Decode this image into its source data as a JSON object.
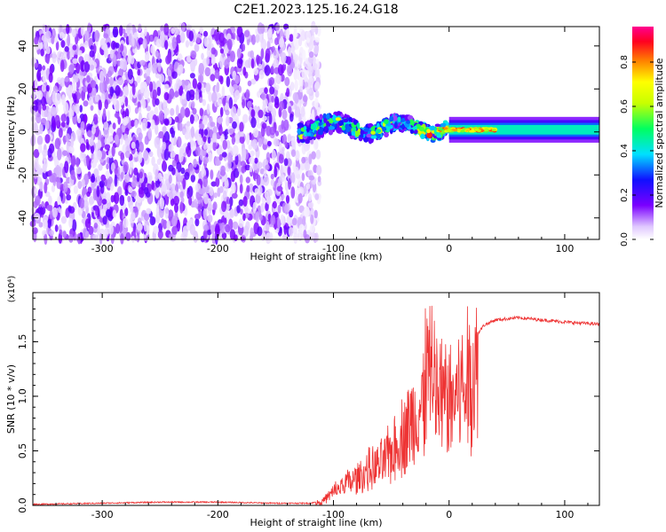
{
  "title": "C2E1.2023.125.16.24.G18",
  "colors": {
    "spectrogram_noise": "#6a00ff",
    "snr_line": "#ee3333"
  },
  "chart_data": [
    {
      "type": "heatmap",
      "xlabel": "Height of straight line (km)",
      "ylabel": "Frequency (Hz)",
      "xlim": [
        -360,
        130
      ],
      "ylim": [
        -50,
        49
      ],
      "xticks": [
        -300,
        -200,
        -100,
        0,
        100
      ],
      "yticks": [
        -40,
        -20,
        0,
        20,
        40
      ],
      "colorbar": {
        "label": "Normalized spectral amplitude",
        "range": [
          0,
          0.96
        ],
        "ticks": [
          "0.0",
          "0.2",
          "0.4",
          "0.6",
          "0.8"
        ],
        "colormap": "rainbow (white-violet-blue-cyan-green-yellow-red-magenta)"
      },
      "regions": [
        {
          "desc": "broadband noise",
          "x": [
            -360,
            -120
          ],
          "y": [
            -50,
            49
          ],
          "amplitude": 0.15
        },
        {
          "desc": "turbulent signal band",
          "x": [
            -130,
            0
          ],
          "y": [
            -8,
            10
          ],
          "amplitude": 0.4
        },
        {
          "desc": "stable carrier line",
          "x": [
            0,
            130
          ],
          "y_center": [
            0,
            2
          ],
          "amplitude": 0.45
        }
      ]
    },
    {
      "type": "line",
      "xlabel": "Height of straight line (km)",
      "ylabel": "SNR (10 * v/v)",
      "y_scale_label": "(x10⁴)",
      "xlim": [
        -360,
        130
      ],
      "ylim": [
        0,
        1.95
      ],
      "xticks": [
        -300,
        -200,
        -100,
        0,
        100
      ],
      "yticks": [
        "0.0",
        "0.5",
        "1.0",
        "1.5"
      ],
      "series": [
        {
          "x": [
            -360,
            -300,
            -250,
            -200,
            -150,
            -120,
            -110,
            -100,
            -90,
            -80,
            -70,
            -60,
            -50,
            -40,
            -30,
            -20,
            -15,
            -10,
            0,
            10,
            20,
            30,
            40,
            60,
            80,
            100,
            130
          ],
          "y": [
            0.01,
            0.02,
            0.03,
            0.03,
            0.02,
            0.02,
            0.04,
            0.15,
            0.25,
            0.3,
            0.4,
            0.45,
            0.6,
            0.8,
            1.0,
            1.2,
            1.3,
            1.25,
            1.2,
            1.3,
            1.5,
            1.65,
            1.7,
            1.72,
            1.7,
            1.68,
            1.66
          ]
        }
      ]
    }
  ]
}
